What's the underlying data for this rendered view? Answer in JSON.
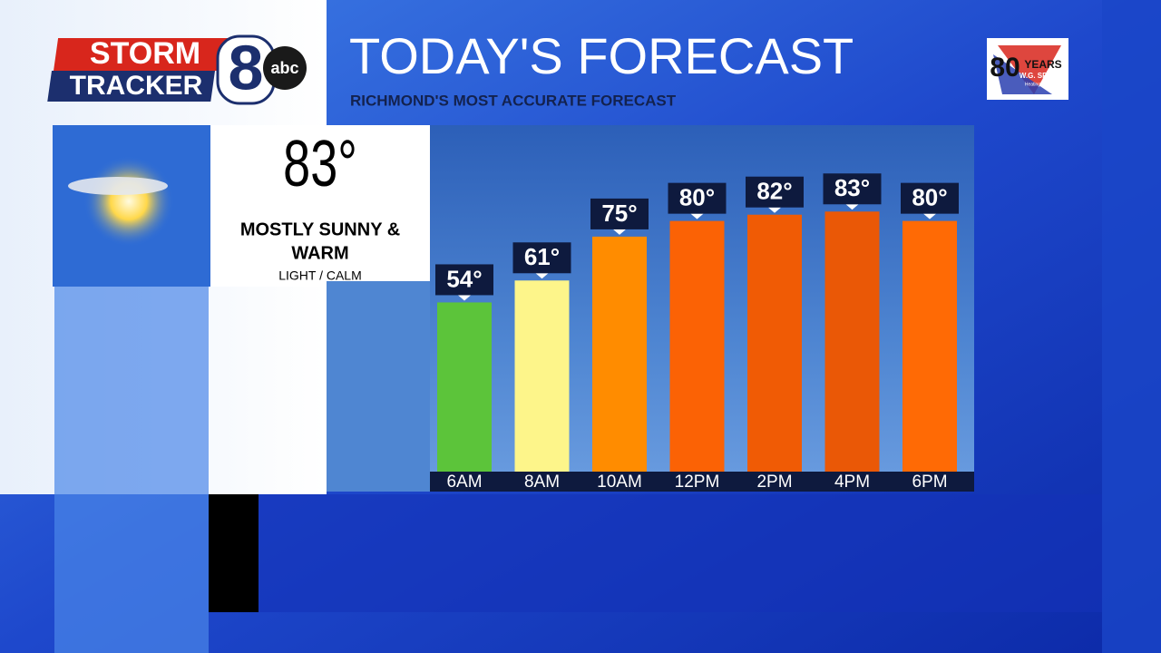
{
  "logo": {
    "storm": "STORM",
    "tracker": "TRACKER",
    "number": "8",
    "network": "abc"
  },
  "sponsor": {
    "number": "80",
    "years": "YEARS",
    "name": "W.G. SPEEKS",
    "tagline": "Heating & Cooling"
  },
  "current": {
    "temperature": "83°",
    "condition": [
      "MOSTLY SUNNY &",
      "WARM"
    ],
    "wind": "LIGHT / CALM"
  },
  "chart_data": {
    "type": "bar",
    "title": "TODAY'S FORECAST",
    "subtitle": "RICHMOND'S MOST ACCURATE FORECAST",
    "categories": [
      "6AM",
      "8AM",
      "10AM",
      "12PM",
      "2PM",
      "4PM",
      "6PM"
    ],
    "values": [
      54,
      61,
      75,
      80,
      82,
      83,
      80
    ],
    "value_labels": [
      "54°",
      "61°",
      "75°",
      "80°",
      "82°",
      "83°",
      "80°"
    ],
    "colors": [
      "#5cc43a",
      "#fdf58a",
      "#ff8c00",
      "#fb6205",
      "#f05b05",
      "#ea5806",
      "#ff6a05"
    ],
    "ylim": [
      0,
      110
    ]
  }
}
